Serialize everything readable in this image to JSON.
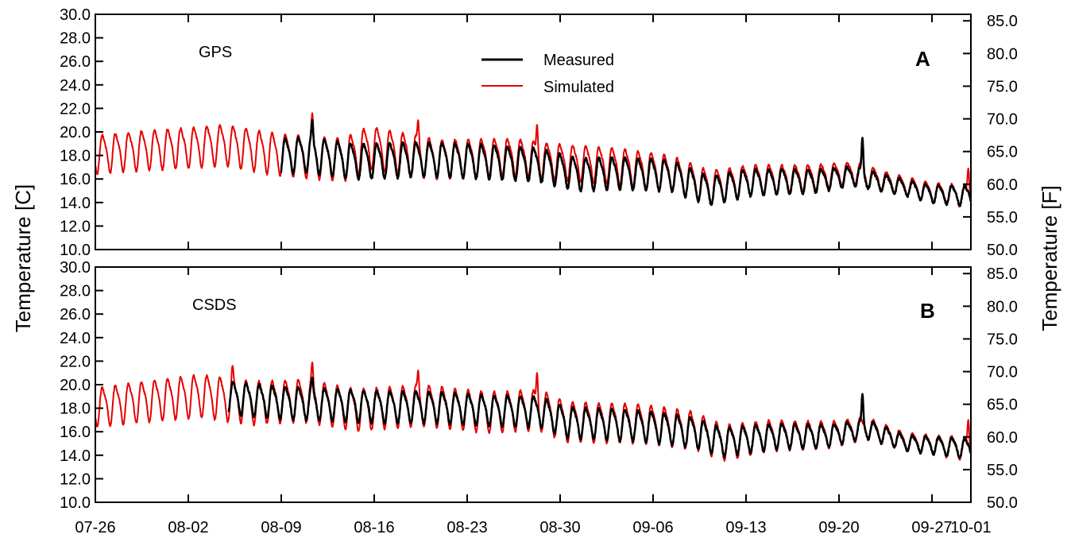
{
  "figure": {
    "left_axis_title": "Temperature [C]",
    "right_axis_title": "Temperature [F]"
  },
  "chart_data": [
    {
      "type": "line",
      "panel_label": "A",
      "site_label": "GPS",
      "xlabel": "",
      "x_ticks": [
        "07-26",
        "08-02",
        "08-09",
        "08-16",
        "08-23",
        "08-30",
        "09-06",
        "09-13",
        "09-20",
        "09-27",
        "10-01"
      ],
      "x_range": [
        "07-26",
        "10-01"
      ],
      "y_left_ticks": [
        "10.0",
        "12.0",
        "14.0",
        "16.0",
        "18.0",
        "20.0",
        "22.0",
        "24.0",
        "26.0",
        "28.0",
        "30.0"
      ],
      "y_right_ticks": [
        "50.0",
        "55.0",
        "60.0",
        "65.0",
        "70.0",
        "75.0",
        "80.0",
        "85.0"
      ],
      "ylim": [
        10,
        30
      ],
      "ylim_right": [
        50,
        86
      ],
      "grid": false,
      "legend": {
        "placement": "top-center",
        "entries": [
          "Measured",
          "Simulated"
        ]
      },
      "series": [
        {
          "name": "Simulated",
          "color": "#e60000",
          "start_day": 0,
          "end_day": 67,
          "daily_pattern": "diurnal",
          "baseline_C": [
            [
              0,
              18.2
            ],
            [
              3,
              18.5
            ],
            [
              10,
              19.0
            ],
            [
              14,
              18.2
            ],
            [
              19,
              17.8
            ],
            [
              21,
              18.8
            ],
            [
              26,
              17.8
            ],
            [
              32,
              18.0
            ],
            [
              35,
              17.6
            ],
            [
              40,
              17.2
            ],
            [
              44,
              16.6
            ],
            [
              47,
              15.4
            ],
            [
              50,
              16.0
            ],
            [
              55,
              16.2
            ],
            [
              58,
              16.6
            ],
            [
              60,
              16.0
            ],
            [
              64,
              14.9
            ],
            [
              67,
              14.6
            ]
          ],
          "amplitude_C": [
            [
              0,
              1.5
            ],
            [
              10,
              1.6
            ],
            [
              20,
              1.7
            ],
            [
              33,
              1.4
            ],
            [
              45,
              1.4
            ],
            [
              55,
              1.0
            ],
            [
              62,
              0.7
            ],
            [
              67,
              0.9
            ]
          ],
          "spikes": [
            {
              "day": 16.6,
              "value_C": 21.6
            },
            {
              "day": 24.7,
              "value_C": 21.0
            },
            {
              "day": 33.8,
              "value_C": 20.6
            },
            {
              "day": 58.7,
              "value_C": 19.2
            },
            {
              "day": 66.8,
              "value_C": 16.9
            }
          ]
        },
        {
          "name": "Measured",
          "color": "#000000",
          "start_day": 14.2,
          "end_day": 67,
          "daily_pattern": "diurnal",
          "baseline_C": [
            [
              14,
              18.0
            ],
            [
              16,
              18.2
            ],
            [
              20,
              17.6
            ],
            [
              25,
              17.8
            ],
            [
              30,
              17.6
            ],
            [
              34,
              17.3
            ],
            [
              37,
              16.5
            ],
            [
              40,
              16.6
            ],
            [
              44,
              16.4
            ],
            [
              47,
              15.1
            ],
            [
              50,
              15.8
            ],
            [
              55,
              15.9
            ],
            [
              58,
              16.3
            ],
            [
              60,
              15.8
            ],
            [
              64,
              14.8
            ],
            [
              67,
              14.6
            ]
          ],
          "amplitude_C": [
            [
              14,
              1.4
            ],
            [
              35,
              1.3
            ],
            [
              45,
              1.2
            ],
            [
              55,
              0.9
            ],
            [
              62,
              0.6
            ],
            [
              67,
              0.8
            ]
          ],
          "spikes": [
            {
              "day": 16.6,
              "value_C": 21.0
            },
            {
              "day": 58.7,
              "value_C": 19.5
            }
          ]
        }
      ]
    },
    {
      "type": "line",
      "panel_label": "B",
      "site_label": "CSDS",
      "xlabel": "",
      "x_ticks": [
        "07-26",
        "08-02",
        "08-09",
        "08-16",
        "08-23",
        "08-30",
        "09-06",
        "09-13",
        "09-20",
        "09-27",
        "10-01"
      ],
      "x_range": [
        "07-26",
        "10-01"
      ],
      "y_left_ticks": [
        "10.0",
        "12.0",
        "14.0",
        "16.0",
        "18.0",
        "20.0",
        "22.0",
        "24.0",
        "26.0",
        "28.0",
        "30.0"
      ],
      "y_right_ticks": [
        "50.0",
        "55.0",
        "60.0",
        "65.0",
        "70.0",
        "75.0",
        "80.0",
        "85.0"
      ],
      "ylim": [
        10,
        30
      ],
      "ylim_right": [
        50,
        86
      ],
      "grid": false,
      "legend": null,
      "series": [
        {
          "name": "Simulated",
          "color": "#e60000",
          "start_day": 0,
          "end_day": 67,
          "daily_pattern": "diurnal",
          "baseline_C": [
            [
              0,
              18.2
            ],
            [
              3,
              18.6
            ],
            [
              8,
              19.2
            ],
            [
              12,
              18.6
            ],
            [
              16,
              18.8
            ],
            [
              20,
              18.0
            ],
            [
              25,
              18.4
            ],
            [
              30,
              17.8
            ],
            [
              34,
              18.0
            ],
            [
              36,
              17.0
            ],
            [
              42,
              16.8
            ],
            [
              46,
              16.2
            ],
            [
              48,
              15.2
            ],
            [
              52,
              15.8
            ],
            [
              56,
              15.8
            ],
            [
              59,
              16.4
            ],
            [
              62,
              15.2
            ],
            [
              67,
              14.6
            ]
          ],
          "amplitude_C": [
            [
              0,
              1.5
            ],
            [
              10,
              1.7
            ],
            [
              25,
              1.6
            ],
            [
              33,
              1.6
            ],
            [
              45,
              1.5
            ],
            [
              55,
              1.1
            ],
            [
              62,
              0.7
            ],
            [
              67,
              0.9
            ]
          ],
          "spikes": [
            {
              "day": 10.5,
              "value_C": 21.6
            },
            {
              "day": 16.6,
              "value_C": 21.9
            },
            {
              "day": 24.7,
              "value_C": 21.2
            },
            {
              "day": 33.8,
              "value_C": 21.0
            },
            {
              "day": 66.8,
              "value_C": 17.0
            }
          ]
        },
        {
          "name": "Measured",
          "color": "#000000",
          "start_day": 10.2,
          "end_day": 67,
          "daily_pattern": "diurnal",
          "baseline_C": [
            [
              10,
              19.0
            ],
            [
              14,
              18.6
            ],
            [
              18,
              18.4
            ],
            [
              22,
              18.2
            ],
            [
              26,
              18.2
            ],
            [
              30,
              17.9
            ],
            [
              34,
              17.8
            ],
            [
              36,
              16.9
            ],
            [
              42,
              16.6
            ],
            [
              46,
              16.0
            ],
            [
              48,
              15.2
            ],
            [
              52,
              15.7
            ],
            [
              56,
              15.7
            ],
            [
              59,
              16.3
            ],
            [
              62,
              15.1
            ],
            [
              67,
              14.6
            ]
          ],
          "amplitude_C": [
            [
              10,
              1.3
            ],
            [
              30,
              1.2
            ],
            [
              45,
              1.2
            ],
            [
              55,
              0.9
            ],
            [
              62,
              0.6
            ],
            [
              67,
              0.8
            ]
          ],
          "spikes": [
            {
              "day": 16.6,
              "value_C": 20.6
            },
            {
              "day": 58.7,
              "value_C": 19.2
            }
          ]
        }
      ]
    }
  ]
}
